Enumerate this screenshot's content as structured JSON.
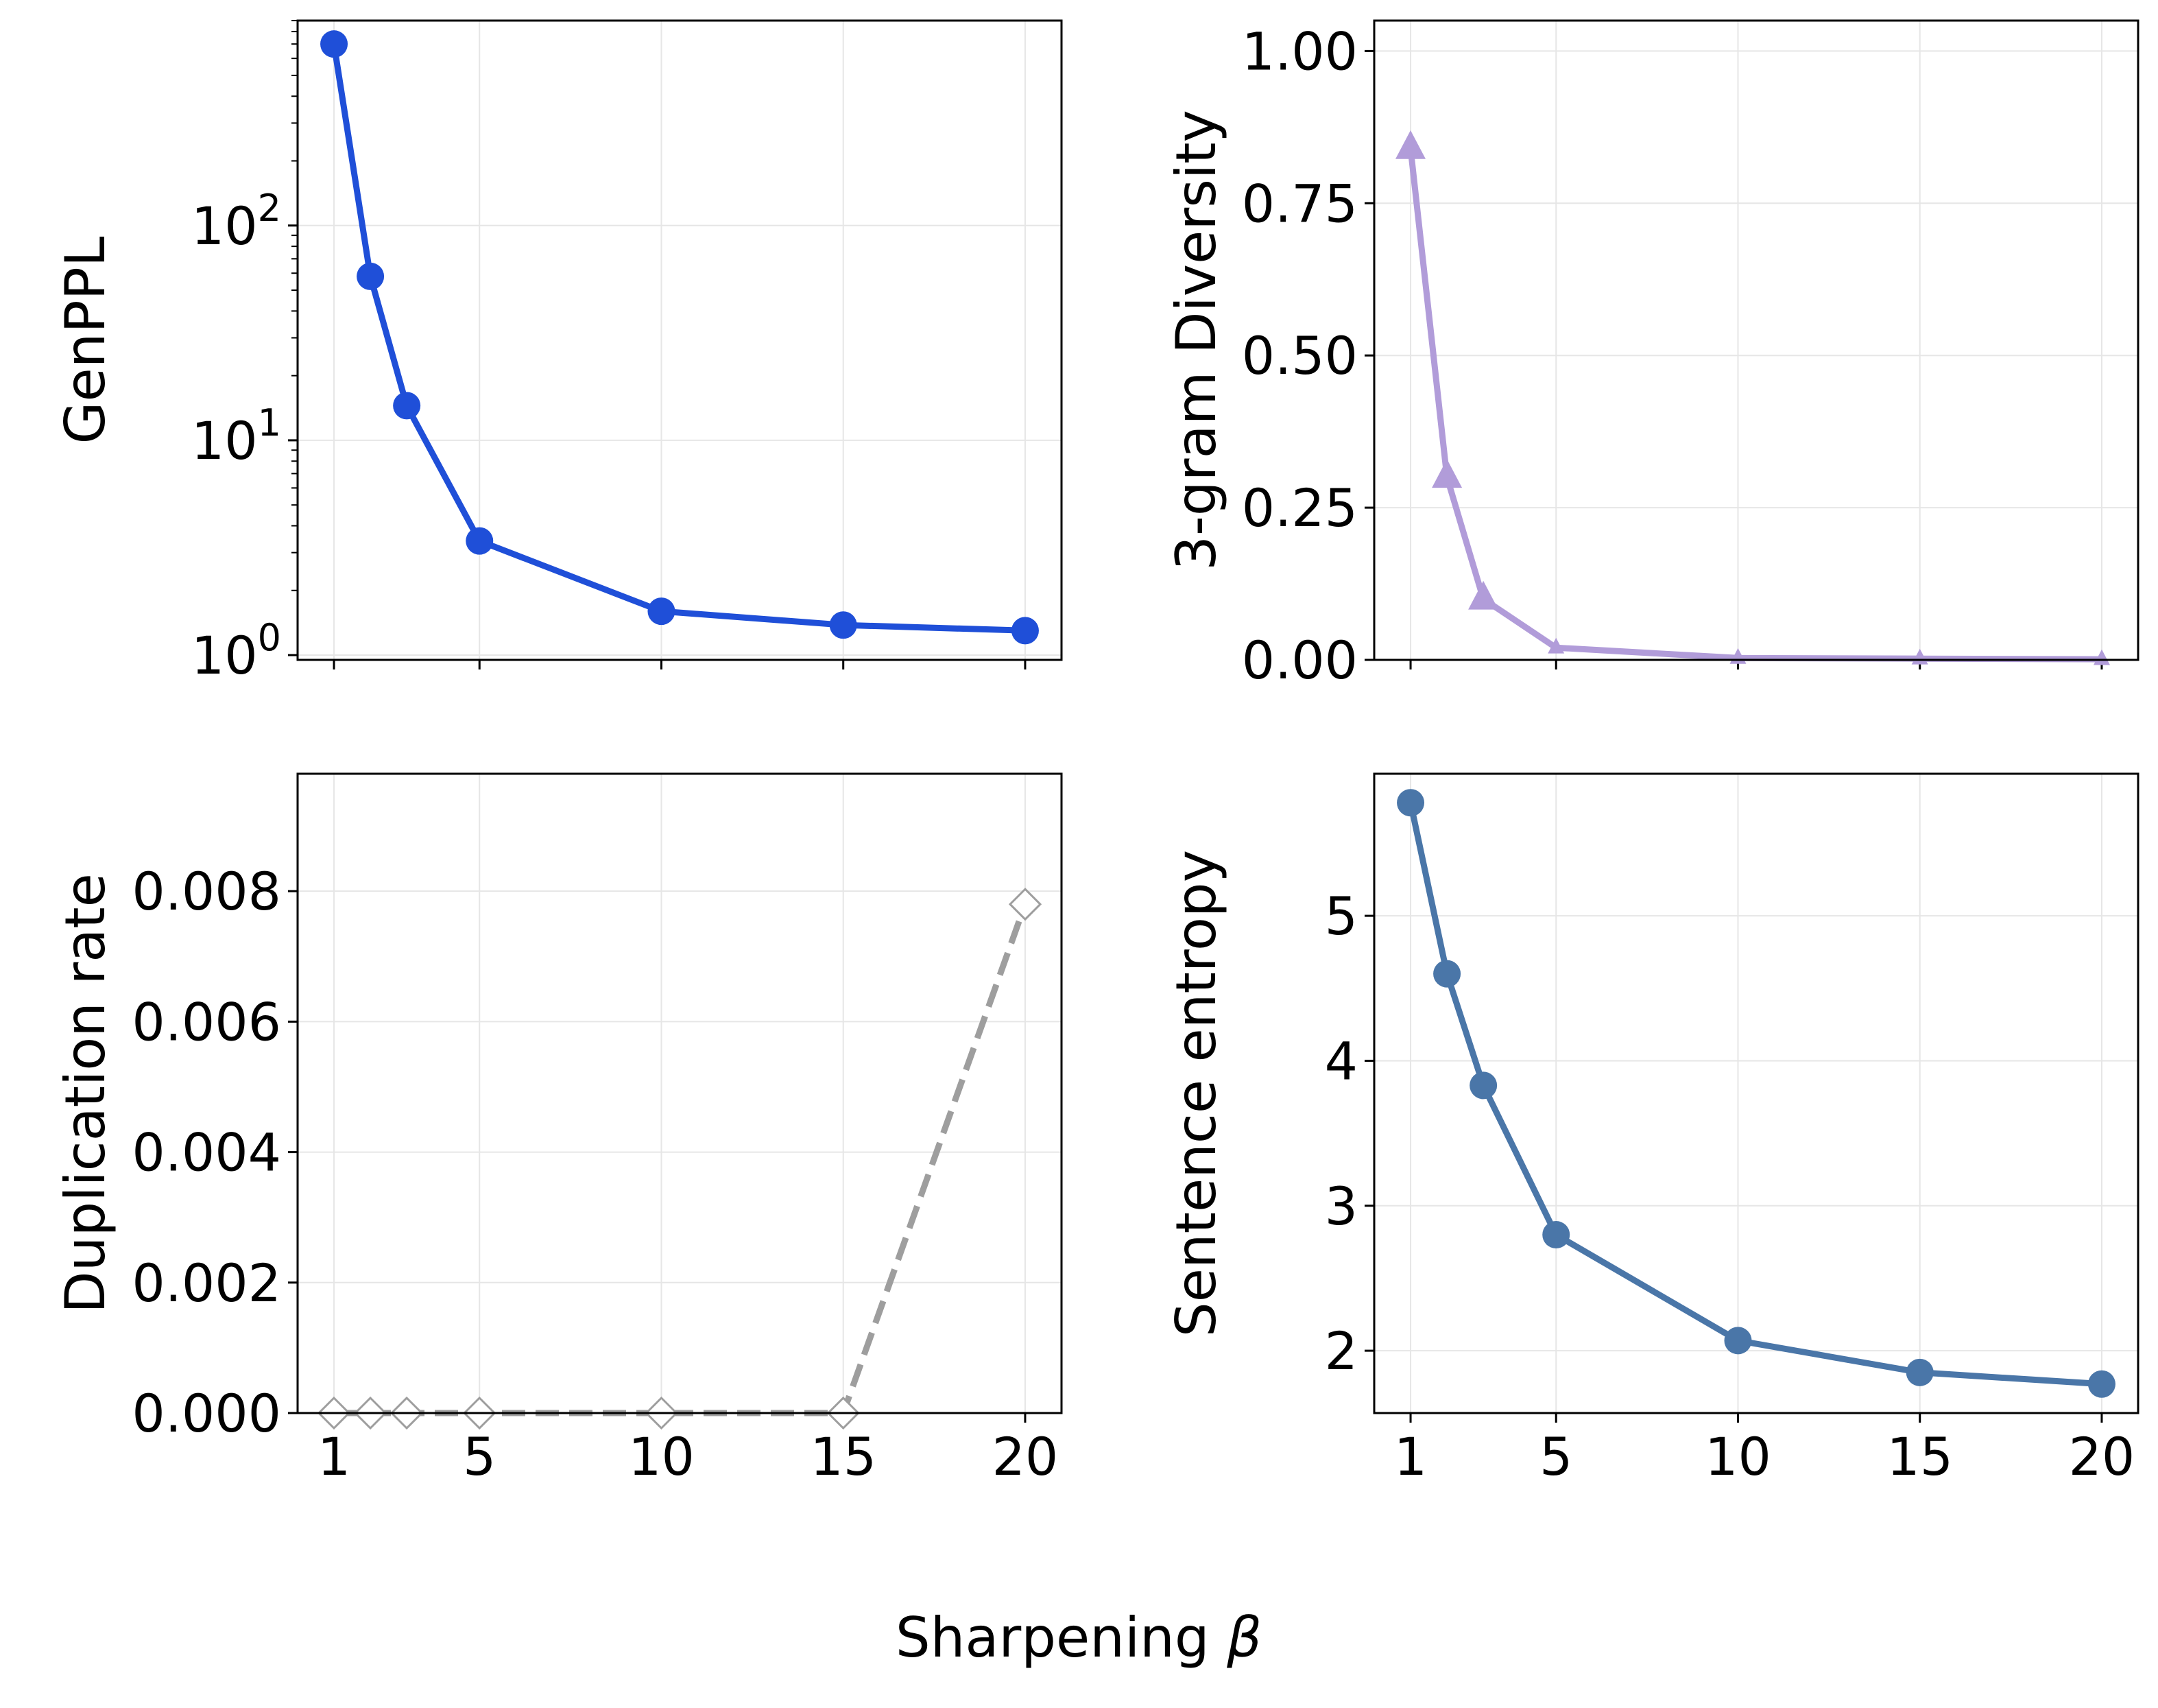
{
  "figure": {
    "shared_xlabel": "Sharpening ",
    "shared_xlabel_symbol": "β"
  },
  "chart_data": [
    {
      "id": "genppl",
      "type": "line",
      "yscale": "log",
      "title": "",
      "xlabel": "",
      "ylabel": "GenPPL",
      "x": [
        1,
        2,
        3,
        5,
        10,
        15,
        20
      ],
      "series": [
        {
          "name": "GenPPL",
          "values": [
            700,
            58,
            14.5,
            3.4,
            1.6,
            1.38,
            1.3
          ],
          "color": "#1f4fd8",
          "marker": "circle",
          "linestyle": "solid"
        }
      ],
      "xlim": [
        0,
        21
      ],
      "ylim": [
        0.95,
        900
      ],
      "xticks": [
        1,
        5,
        10,
        15,
        20
      ],
      "xticklabels_visible": false,
      "yticks": [
        1,
        10,
        100
      ],
      "yticklabels": [
        {
          "base": "10",
          "exp": "0"
        },
        {
          "base": "10",
          "exp": "1"
        },
        {
          "base": "10",
          "exp": "2"
        }
      ],
      "grid": true
    },
    {
      "id": "diversity",
      "type": "line",
      "yscale": "linear",
      "title": "",
      "xlabel": "",
      "ylabel": "3-gram Diversity",
      "x": [
        1,
        2,
        3,
        5,
        10,
        15,
        20
      ],
      "series": [
        {
          "name": "3-gram Diversity",
          "values": [
            0.84,
            0.3,
            0.1,
            0.02,
            0.003,
            0.002,
            0.001
          ],
          "color": "#b19cd9",
          "marker": "triangle",
          "linestyle": "solid"
        }
      ],
      "xlim": [
        0,
        21
      ],
      "ylim": [
        0,
        1.05
      ],
      "xticks": [
        1,
        5,
        10,
        15,
        20
      ],
      "xticklabels_visible": false,
      "yticks": [
        0,
        0.25,
        0.5,
        0.75,
        1.0
      ],
      "yticklabels": [
        "0.00",
        "0.25",
        "0.50",
        "0.75",
        "1.00"
      ],
      "grid": true
    },
    {
      "id": "duplication",
      "type": "line",
      "yscale": "linear",
      "title": "",
      "xlabel": "",
      "ylabel": "Duplication rate",
      "x": [
        1,
        2,
        3,
        5,
        10,
        15,
        20
      ],
      "series": [
        {
          "name": "Duplication rate",
          "values": [
            0,
            0,
            0,
            0,
            0,
            0,
            0.0078
          ],
          "color": "#9e9e9e",
          "marker": "diamond-open",
          "linestyle": "dashed"
        }
      ],
      "xlim": [
        0,
        21
      ],
      "ylim": [
        0,
        0.0098
      ],
      "xticks": [
        1,
        5,
        10,
        15,
        20
      ],
      "xticklabels": [
        "1",
        "5",
        "10",
        "15",
        "20"
      ],
      "xticklabels_visible": true,
      "yticks": [
        0,
        0.002,
        0.004,
        0.006,
        0.008
      ],
      "yticklabels": [
        "0.000",
        "0.002",
        "0.004",
        "0.006",
        "0.008"
      ],
      "grid": true
    },
    {
      "id": "entropy",
      "type": "line",
      "yscale": "linear",
      "title": "",
      "xlabel": "",
      "ylabel": "Sentence entropy",
      "x": [
        1,
        2,
        3,
        5,
        10,
        15,
        20
      ],
      "series": [
        {
          "name": "Sentence entropy",
          "values": [
            5.78,
            4.6,
            3.83,
            2.8,
            2.07,
            1.85,
            1.77
          ],
          "color": "#4a76a8",
          "marker": "circle",
          "linestyle": "solid"
        }
      ],
      "xlim": [
        0,
        21
      ],
      "ylim": [
        1.57,
        5.98
      ],
      "xticks": [
        1,
        5,
        10,
        15,
        20
      ],
      "xticklabels": [
        "1",
        "5",
        "10",
        "15",
        "20"
      ],
      "xticklabels_visible": true,
      "yticks": [
        2,
        3,
        4,
        5
      ],
      "yticklabels": [
        "2",
        "3",
        "4",
        "5"
      ],
      "grid": true
    }
  ]
}
